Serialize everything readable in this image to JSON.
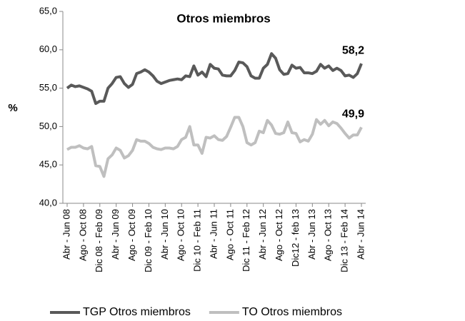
{
  "chart_data": {
    "type": "line",
    "title": "Otros miembros",
    "ylabel": "%",
    "categories": [
      "Abr - Jun 08",
      null,
      null,
      null,
      "Ago - Oct 08",
      null,
      null,
      null,
      "Dic 08 - Feb 09",
      null,
      null,
      null,
      "Abr - Jun 09",
      null,
      null,
      null,
      "Ago - Oct 09",
      null,
      null,
      null,
      "Dic 09 - Feb 10",
      null,
      null,
      null,
      "Abr - Jun 10",
      null,
      null,
      null,
      "Ago - Oct 10",
      null,
      null,
      null,
      "Dic 10 - Feb 11",
      null,
      null,
      null,
      "Abr - Jun 11",
      null,
      null,
      null,
      "Ago - Oct 11",
      null,
      null,
      null,
      "Dic 11 - Feb 12",
      null,
      null,
      null,
      "Abr - Jun 12",
      null,
      null,
      null,
      "Ago - Oct 12",
      null,
      null,
      null,
      "Dic12 - feb 13",
      null,
      null,
      null,
      "Abr - Jun 13",
      null,
      null,
      null,
      "Ago - Oct 13",
      null,
      null,
      null,
      "Dic 13 - Feb 14",
      null,
      null,
      null,
      "Abr - Jun 14"
    ],
    "series": [
      {
        "name": "TGP Otros miembros",
        "color": "#595959",
        "values": [
          55.0,
          55.4,
          55.2,
          55.3,
          55.1,
          54.9,
          54.6,
          53.0,
          53.3,
          53.3,
          55.0,
          55.6,
          56.4,
          56.5,
          55.6,
          55.1,
          55.5,
          56.9,
          57.1,
          57.4,
          57.1,
          56.6,
          55.9,
          55.6,
          55.8,
          56.0,
          56.1,
          56.2,
          56.1,
          56.6,
          56.5,
          57.9,
          56.7,
          57.1,
          56.5,
          58.1,
          57.6,
          57.5,
          56.7,
          56.6,
          56.6,
          57.3,
          58.4,
          58.3,
          57.8,
          56.6,
          56.3,
          56.3,
          57.6,
          58.1,
          59.5,
          58.9,
          57.4,
          56.8,
          56.9,
          58.0,
          57.6,
          57.7,
          57.0,
          57.0,
          56.9,
          57.2,
          58.1,
          57.6,
          57.9,
          57.3,
          57.6,
          57.3,
          56.6,
          56.7,
          56.4,
          56.9,
          58.2
        ],
        "value_labels": [
          null,
          null,
          null,
          null,
          null,
          null,
          null,
          null,
          null,
          null,
          null,
          null,
          null,
          null,
          null,
          null,
          null,
          null,
          null,
          null,
          null,
          null,
          null,
          null,
          null,
          null,
          null,
          null,
          null,
          null,
          null,
          null,
          null,
          null,
          null,
          null,
          null,
          null,
          null,
          null,
          null,
          null,
          null,
          null,
          null,
          null,
          null,
          null,
          null,
          null,
          null,
          null,
          null,
          null,
          null,
          null,
          null,
          null,
          null,
          null,
          null,
          null,
          null,
          null,
          null,
          null,
          null,
          null,
          null,
          null,
          null,
          null,
          "58,2"
        ]
      },
      {
        "name": "TO Otros miembros",
        "color": "#bfbfbf",
        "values": [
          47.0,
          47.3,
          47.3,
          47.5,
          47.2,
          47.1,
          47.4,
          44.9,
          44.8,
          43.5,
          45.8,
          46.3,
          47.2,
          46.9,
          45.9,
          46.2,
          46.9,
          48.3,
          48.1,
          48.1,
          47.8,
          47.3,
          47.1,
          47.0,
          47.2,
          47.2,
          47.1,
          47.4,
          48.3,
          48.6,
          50.0,
          47.6,
          47.6,
          46.5,
          48.6,
          48.5,
          48.8,
          48.3,
          48.2,
          48.7,
          49.9,
          51.2,
          51.2,
          50.0,
          47.9,
          47.6,
          47.9,
          49.4,
          49.2,
          50.8,
          50.2,
          49.1,
          49.0,
          49.2,
          50.6,
          49.2,
          49.1,
          48.0,
          48.3,
          48.1,
          49.0,
          50.9,
          50.3,
          50.8,
          50.1,
          50.6,
          50.4,
          49.8,
          49.1,
          48.5,
          48.9,
          48.9,
          49.9
        ],
        "value_labels": [
          null,
          null,
          null,
          null,
          null,
          null,
          null,
          null,
          null,
          null,
          null,
          null,
          null,
          null,
          null,
          null,
          null,
          null,
          null,
          null,
          null,
          null,
          null,
          null,
          null,
          null,
          null,
          null,
          null,
          null,
          null,
          null,
          null,
          null,
          null,
          null,
          null,
          null,
          null,
          null,
          null,
          null,
          null,
          null,
          null,
          null,
          null,
          null,
          null,
          null,
          null,
          null,
          null,
          null,
          null,
          null,
          null,
          null,
          null,
          null,
          null,
          null,
          null,
          null,
          null,
          null,
          null,
          null,
          null,
          null,
          null,
          null,
          "49,9"
        ]
      }
    ],
    "ylim": [
      40,
      65
    ],
    "yticks": [
      {
        "value": 40,
        "label": "40,0"
      },
      {
        "value": 45,
        "label": "45,0"
      },
      {
        "value": 50,
        "label": "50,0"
      },
      {
        "value": 55,
        "label": "55,0"
      },
      {
        "value": 60,
        "label": "60,0"
      },
      {
        "value": 65,
        "label": "65,0"
      }
    ],
    "legend": "bottom"
  }
}
